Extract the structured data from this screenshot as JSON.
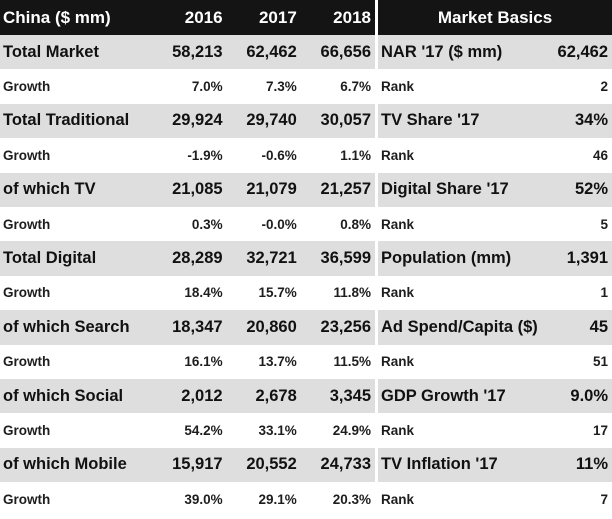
{
  "left_table": {
    "header": {
      "title": "China ($ mm)",
      "years": [
        "2016",
        "2017",
        "2018"
      ]
    },
    "rows": [
      {
        "label": "Total Market",
        "values": [
          "58,213",
          "62,462",
          "66,656"
        ],
        "type": "main"
      },
      {
        "label": "Growth",
        "values": [
          "7.0%",
          "7.3%",
          "6.7%"
        ],
        "type": "sub"
      },
      {
        "label": "Total Traditional",
        "values": [
          "29,924",
          "29,740",
          "30,057"
        ],
        "type": "main"
      },
      {
        "label": "Growth",
        "values": [
          "-1.9%",
          "-0.6%",
          "1.1%"
        ],
        "type": "sub"
      },
      {
        "label": "of which TV",
        "values": [
          "21,085",
          "21,079",
          "21,257"
        ],
        "type": "main"
      },
      {
        "label": "Growth",
        "values": [
          "0.3%",
          "-0.0%",
          "0.8%"
        ],
        "type": "sub"
      },
      {
        "label": "Total Digital",
        "values": [
          "28,289",
          "32,721",
          "36,599"
        ],
        "type": "main"
      },
      {
        "label": "Growth",
        "values": [
          "18.4%",
          "15.7%",
          "11.8%"
        ],
        "type": "sub"
      },
      {
        "label": "of which Search",
        "values": [
          "18,347",
          "20,860",
          "23,256"
        ],
        "type": "main"
      },
      {
        "label": "Growth",
        "values": [
          "16.1%",
          "13.7%",
          "11.5%"
        ],
        "type": "sub"
      },
      {
        "label": "of which Social",
        "values": [
          "2,012",
          "2,678",
          "3,345"
        ],
        "type": "main"
      },
      {
        "label": "Growth",
        "values": [
          "54.2%",
          "33.1%",
          "24.9%"
        ],
        "type": "sub"
      },
      {
        "label": "of which Mobile",
        "values": [
          "15,917",
          "20,552",
          "24,733"
        ],
        "type": "main"
      },
      {
        "label": "Growth",
        "values": [
          "39.0%",
          "29.1%",
          "20.3%"
        ],
        "type": "sub"
      }
    ]
  },
  "right_table": {
    "header": {
      "title": "Market Basics"
    },
    "rows": [
      {
        "label": "NAR '17 ($ mm)",
        "value": "62,462",
        "type": "main"
      },
      {
        "label": "Rank",
        "value": "2",
        "type": "sub"
      },
      {
        "label": "TV Share '17",
        "value": "34%",
        "type": "main"
      },
      {
        "label": "Rank",
        "value": "46",
        "type": "sub"
      },
      {
        "label": "Digital Share '17",
        "value": "52%",
        "type": "main"
      },
      {
        "label": "Rank",
        "value": "5",
        "type": "sub"
      },
      {
        "label": "Population (mm)",
        "value": "1,391",
        "type": "main"
      },
      {
        "label": "Rank",
        "value": "1",
        "type": "sub"
      },
      {
        "label": "Ad Spend/Capita ($)",
        "value": "45",
        "type": "main"
      },
      {
        "label": "Rank",
        "value": "51",
        "type": "sub"
      },
      {
        "label": "GDP Growth '17",
        "value": "9.0%",
        "type": "main"
      },
      {
        "label": "Rank",
        "value": "17",
        "type": "sub"
      },
      {
        "label": "TV Inflation '17",
        "value": "11%",
        "type": "main"
      },
      {
        "label": "Rank",
        "value": "7",
        "type": "sub"
      }
    ]
  }
}
